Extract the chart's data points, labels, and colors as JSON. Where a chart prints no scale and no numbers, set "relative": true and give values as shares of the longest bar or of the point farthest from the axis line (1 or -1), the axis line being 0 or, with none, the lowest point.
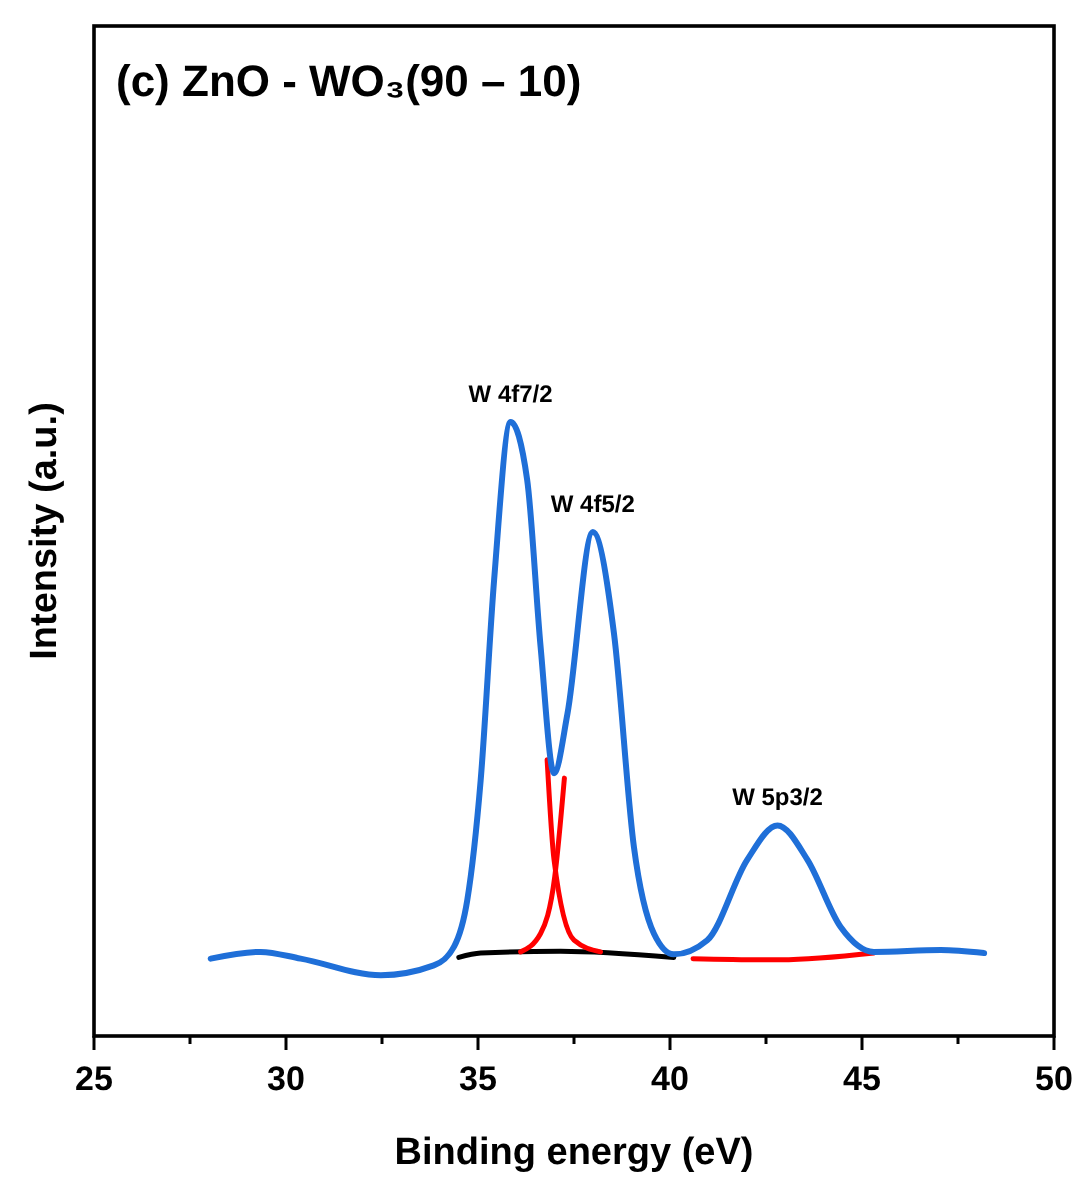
{
  "chart_data": {
    "type": "line",
    "title": "(c) ZnO - WO₃(90 – 10)",
    "xlabel": "Binding energy (eV)",
    "ylabel": "Intensity (a.u.)",
    "relative": true,
    "xlim": [
      25,
      50
    ],
    "xticks": [
      25,
      {
        "value": 27.5,
        "label": null
      },
      30,
      {
        "value": 32.5,
        "label": null
      },
      35,
      {
        "value": 37.5,
        "label": null
      },
      40,
      {
        "value": 42.5,
        "label": null
      },
      45,
      {
        "value": 47.5,
        "label": null
      },
      50
    ],
    "grid": false,
    "marker": "none",
    "line_style": "solid",
    "series": [
      {
        "color": "#000000",
        "x": [
          34.5,
          35.07,
          37.15,
          40.1
        ],
        "values": [
          0.128,
          0.135,
          0.138,
          0.128
        ]
      },
      {
        "color": "#ff0000",
        "x": [
          36.8,
          36.98,
          37.5,
          38.19
        ],
        "values": [
          0.45,
          0.287,
          0.156,
          0.137
        ]
      },
      {
        "color": "#ff0000",
        "x": [
          36.11,
          36.63,
          37.0,
          37.25,
          37.99,
          39.58,
          40.6,
          42.88,
          45.31
        ],
        "values": [
          0.137,
          0.167,
          0.26,
          0.42,
          null,
          null,
          0.126,
          0.124,
          0.135
        ]
      },
      {
        "color": "#1f6fd8",
        "x": [
          28.04,
          29.34,
          30.38,
          32.47,
          33.85,
          34.38,
          34.72,
          35.07,
          35.42,
          35.85,
          36.28,
          36.63,
          36.98,
          37.33,
          37.99,
          38.54,
          39.06,
          39.58,
          40.1,
          40.97,
          42.01,
          42.8,
          43.58,
          44.44,
          45.31,
          47.05,
          48.18
        ],
        "values": [
          0.126,
          0.137,
          0.126,
          0.099,
          0.115,
          0.146,
          0.221,
          0.417,
          0.743,
          1.0,
          0.906,
          0.634,
          0.428,
          0.525,
          0.821,
          0.656,
          0.308,
          0.167,
          0.133,
          0.156,
          0.287,
          0.343,
          0.287,
          0.178,
          0.137,
          0.14,
          0.135
        ]
      }
    ],
    "annotations": [
      {
        "text": "W 4f7/2",
        "x": 35.85,
        "y": 1.0
      },
      {
        "text": "W 4f5/2",
        "x": 37.99,
        "y": 0.821
      },
      {
        "text": "W 5p3/2",
        "x": 42.8,
        "y": 0.343
      }
    ]
  }
}
